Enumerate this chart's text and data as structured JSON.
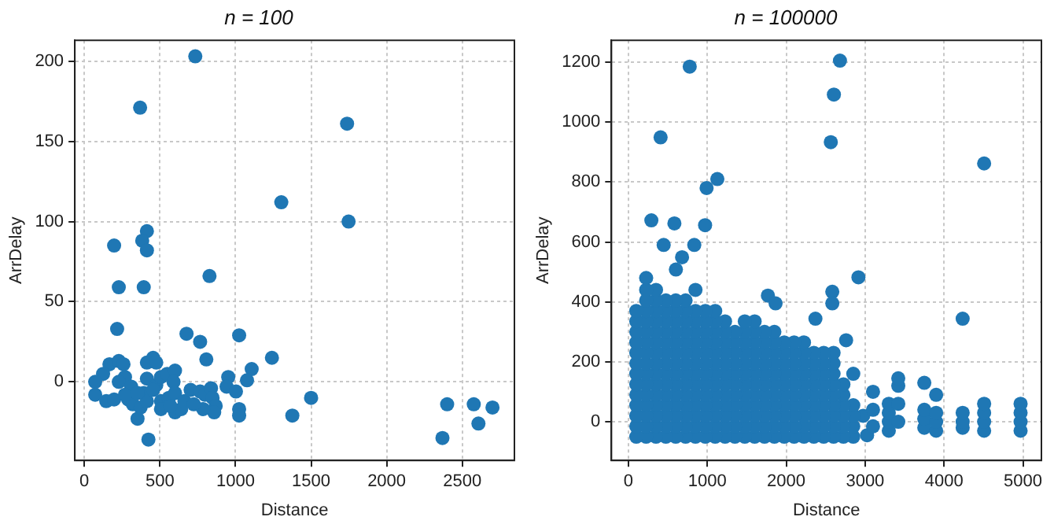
{
  "chart_data": [
    {
      "type": "scatter",
      "title": "n = 100",
      "xlabel": "Distance",
      "ylabel": "ArrDelay",
      "xlim": [
        -63,
        2845
      ],
      "ylim": [
        -49,
        213
      ],
      "xticks": [
        0,
        500,
        1000,
        1500,
        2000,
        2500
      ],
      "yticks": [
        0,
        50,
        100,
        150,
        200
      ],
      "grid": true,
      "marker": "circle",
      "legend": false,
      "series": [
        {
          "color": "#1f77b4",
          "x": [
            734,
            369,
            1738,
            1303,
            1748,
            414,
            383,
            197,
            414,
            828,
            228,
            393,
            217,
            676,
            1024,
            766,
            807,
            1241,
            1107,
            455,
            414,
            476,
            166,
            228,
            259,
            124,
            72,
            72,
            145,
            197,
            269,
            228,
            310,
            290,
            321,
            352,
            372,
            424,
            393,
            414,
            476,
            414,
            507,
            548,
            600,
            507,
            507,
            559,
            590,
            600,
            600,
            641,
            662,
            703,
            766,
            797,
            838,
            848,
            869,
            859,
            786,
            724,
            952,
            941,
            1003,
            1024,
            1024,
            1076,
            1376,
            1500,
            2400,
            2369,
            2576,
            2607,
            2700,
            269,
            352,
            455,
            569
          ],
          "values": [
            203,
            171,
            161,
            112,
            100,
            94,
            88,
            85,
            82,
            66,
            59,
            59,
            33,
            30,
            29,
            25,
            14,
            15,
            8,
            15,
            12,
            12,
            11,
            13,
            11,
            5,
            0,
            -8,
            -12,
            -11,
            3,
            0,
            -3,
            -11,
            -14,
            -23,
            -16,
            -36,
            -7,
            2,
            -2,
            -12,
            3,
            5,
            7,
            -12,
            -17,
            -10,
            0,
            -7,
            -19,
            -17,
            -12,
            -5,
            -6,
            -8,
            -4,
            -10,
            -15,
            -19,
            -17,
            -14,
            3,
            -3,
            -6,
            -17,
            -21,
            1,
            -21,
            -10,
            -14,
            -35,
            -14,
            -26,
            -16,
            -8,
            -7,
            -5,
            -15
          ]
        }
      ]
    },
    {
      "type": "scatter",
      "title": "n = 100000",
      "xlabel": "Distance",
      "ylabel": "ArrDelay",
      "xlim": [
        -215,
        5234
      ],
      "ylim": [
        -129,
        1273
      ],
      "xticks": [
        0,
        1000,
        2000,
        3000,
        4000,
        5000
      ],
      "yticks": [
        0,
        200,
        400,
        600,
        800,
        1000,
        1200
      ],
      "grid": true,
      "marker": "circle",
      "legend": false,
      "series": [
        {
          "color": "#1f77b4",
          "x": [
            777,
            2681,
            2604,
            2565,
            408,
            4508,
            1127,
            991,
            291,
            583,
            972,
            447,
            835,
            680,
            602,
            2915,
            4236,
            1768,
            1865,
            2584,
            2584,
            2759,
            2370
          ],
          "values": [
            1185,
            1205,
            1092,
            933,
            949,
            862,
            810,
            780,
            672,
            662,
            656,
            590,
            590,
            549,
            508,
            482,
            344,
            421,
            395,
            434,
            395,
            272,
            344
          ]
        },
        {
          "color": "#1f77b4",
          "x": [
            100,
            100,
            100,
            100,
            100,
            100,
            100,
            100,
            100,
            100,
            100,
            100,
            100
          ],
          "values": [
            -50,
            -15,
            20,
            55,
            90,
            125,
            160,
            195,
            230,
            265,
            300,
            335,
            370
          ]
        },
        {
          "color": "#1f77b4",
          "x": [
            225,
            225,
            225,
            225,
            225,
            225,
            225,
            225,
            225,
            225,
            225,
            225,
            225,
            225,
            225,
            225
          ],
          "values": [
            -50,
            -15,
            20,
            55,
            90,
            125,
            160,
            195,
            230,
            265,
            300,
            335,
            370,
            405,
            440,
            480
          ]
        },
        {
          "color": "#1f77b4",
          "x": [
            350,
            350,
            350,
            350,
            350,
            350,
            350,
            350,
            350,
            350,
            350,
            350,
            350,
            350,
            350
          ],
          "values": [
            -50,
            -15,
            20,
            55,
            90,
            125,
            160,
            195,
            230,
            265,
            300,
            335,
            370,
            405,
            440
          ]
        },
        {
          "color": "#1f77b4",
          "x": [
            475,
            475,
            475,
            475,
            475,
            475,
            475,
            475,
            475,
            475,
            475,
            475,
            475,
            475
          ],
          "values": [
            -50,
            -15,
            20,
            55,
            90,
            125,
            160,
            195,
            230,
            265,
            300,
            335,
            370,
            405
          ]
        },
        {
          "color": "#1f77b4",
          "x": [
            600,
            600,
            600,
            600,
            600,
            600,
            600,
            600,
            600,
            600,
            600,
            600,
            600,
            600
          ],
          "values": [
            -50,
            -15,
            20,
            55,
            90,
            125,
            160,
            195,
            230,
            265,
            300,
            335,
            370,
            405
          ]
        },
        {
          "color": "#1f77b4",
          "x": [
            725,
            725,
            725,
            725,
            725,
            725,
            725,
            725,
            725,
            725,
            725,
            725,
            725,
            725
          ],
          "values": [
            -50,
            -15,
            20,
            55,
            90,
            125,
            160,
            195,
            230,
            265,
            300,
            335,
            370,
            405
          ]
        },
        {
          "color": "#1f77b4",
          "x": [
            850,
            850,
            850,
            850,
            850,
            850,
            850,
            850,
            850,
            850,
            850,
            850,
            850,
            850
          ],
          "values": [
            -50,
            -15,
            20,
            55,
            90,
            125,
            160,
            195,
            230,
            265,
            300,
            335,
            370,
            440
          ]
        },
        {
          "color": "#1f77b4",
          "x": [
            975,
            975,
            975,
            975,
            975,
            975,
            975,
            975,
            975,
            975,
            975,
            975,
            975
          ],
          "values": [
            -50,
            -15,
            20,
            55,
            90,
            125,
            160,
            195,
            230,
            265,
            300,
            335,
            370
          ]
        },
        {
          "color": "#1f77b4",
          "x": [
            1100,
            1100,
            1100,
            1100,
            1100,
            1100,
            1100,
            1100,
            1100,
            1100,
            1100,
            1100,
            1100
          ],
          "values": [
            -50,
            -15,
            20,
            55,
            90,
            125,
            160,
            195,
            230,
            265,
            300,
            335,
            370
          ]
        },
        {
          "color": "#1f77b4",
          "x": [
            1225,
            1225,
            1225,
            1225,
            1225,
            1225,
            1225,
            1225,
            1225,
            1225,
            1225,
            1225
          ],
          "values": [
            -50,
            -15,
            20,
            55,
            90,
            125,
            160,
            195,
            230,
            265,
            300,
            335
          ]
        },
        {
          "color": "#1f77b4",
          "x": [
            1350,
            1350,
            1350,
            1350,
            1350,
            1350,
            1350,
            1350,
            1350,
            1350,
            1350
          ],
          "values": [
            -50,
            -15,
            20,
            55,
            90,
            125,
            160,
            195,
            230,
            265,
            300
          ]
        },
        {
          "color": "#1f77b4",
          "x": [
            1475,
            1475,
            1475,
            1475,
            1475,
            1475,
            1475,
            1475,
            1475,
            1475,
            1475,
            1475
          ],
          "values": [
            -50,
            -15,
            20,
            55,
            90,
            125,
            160,
            195,
            230,
            265,
            300,
            335
          ]
        },
        {
          "color": "#1f77b4",
          "x": [
            1600,
            1600,
            1600,
            1600,
            1600,
            1600,
            1600,
            1600,
            1600,
            1600,
            1600,
            1600
          ],
          "values": [
            -50,
            -15,
            20,
            55,
            90,
            125,
            160,
            195,
            230,
            265,
            300,
            335
          ]
        },
        {
          "color": "#1f77b4",
          "x": [
            1725,
            1725,
            1725,
            1725,
            1725,
            1725,
            1725,
            1725,
            1725,
            1725,
            1725
          ],
          "values": [
            -50,
            -15,
            20,
            55,
            90,
            125,
            160,
            195,
            230,
            265,
            300
          ]
        },
        {
          "color": "#1f77b4",
          "x": [
            1850,
            1850,
            1850,
            1850,
            1850,
            1850,
            1850,
            1850,
            1850,
            1850,
            1850
          ],
          "values": [
            -50,
            -15,
            20,
            55,
            90,
            125,
            160,
            195,
            230,
            265,
            300
          ]
        },
        {
          "color": "#1f77b4",
          "x": [
            1975,
            1975,
            1975,
            1975,
            1975,
            1975,
            1975,
            1975,
            1975,
            1975
          ],
          "values": [
            -50,
            -15,
            20,
            55,
            90,
            125,
            160,
            195,
            230,
            265
          ]
        },
        {
          "color": "#1f77b4",
          "x": [
            2100,
            2100,
            2100,
            2100,
            2100,
            2100,
            2100,
            2100,
            2100,
            2100
          ],
          "values": [
            -50,
            -15,
            20,
            55,
            90,
            125,
            160,
            195,
            230,
            265
          ]
        },
        {
          "color": "#1f77b4",
          "x": [
            2225,
            2225,
            2225,
            2225,
            2225,
            2225,
            2225,
            2225,
            2225,
            2225
          ],
          "values": [
            -50,
            -15,
            20,
            55,
            90,
            125,
            160,
            195,
            230,
            265
          ]
        },
        {
          "color": "#1f77b4",
          "x": [
            2350,
            2350,
            2350,
            2350,
            2350,
            2350,
            2350,
            2350,
            2350
          ],
          "values": [
            -50,
            -15,
            20,
            55,
            90,
            125,
            160,
            195,
            230
          ]
        },
        {
          "color": "#1f77b4",
          "x": [
            2475,
            2475,
            2475,
            2475,
            2475,
            2475,
            2475,
            2475,
            2475
          ],
          "values": [
            -50,
            -15,
            20,
            55,
            90,
            125,
            160,
            195,
            230
          ]
        },
        {
          "color": "#1f77b4",
          "x": [
            2600,
            2600,
            2600,
            2600,
            2600,
            2600,
            2600,
            2600,
            2600
          ],
          "values": [
            -50,
            -15,
            20,
            55,
            90,
            125,
            160,
            195,
            230
          ]
        },
        {
          "color": "#1f77b4",
          "x": [
            2725,
            2725,
            2725,
            2725,
            2725,
            2725
          ],
          "values": [
            -50,
            -15,
            20,
            55,
            90,
            125
          ]
        },
        {
          "color": "#1f77b4",
          "x": [
            2850,
            2850,
            2850,
            2850,
            2850
          ],
          "values": [
            -50,
            -15,
            20,
            55,
            160
          ]
        },
        {
          "color": "#1f77b4",
          "x": [
            3025,
            2975,
            3100,
            3100,
            3100,
            3300,
            3300,
            3300,
            3300,
            3420,
            3420,
            3420,
            3420
          ],
          "values": [
            -45,
            20,
            -15,
            40,
            100,
            -30,
            0,
            30,
            60,
            0,
            60,
            120,
            145
          ]
        },
        {
          "color": "#1f77b4",
          "x": [
            3750,
            3750,
            3750,
            3750,
            3900,
            3900,
            3900,
            3900,
            4236,
            4236,
            4236,
            4508,
            4508,
            4508,
            4508,
            4970,
            4970,
            4970,
            4970
          ],
          "values": [
            -20,
            10,
            40,
            130,
            -30,
            0,
            30,
            90,
            -20,
            0,
            30,
            -30,
            0,
            30,
            60,
            -30,
            0,
            30,
            60
          ]
        }
      ]
    }
  ]
}
